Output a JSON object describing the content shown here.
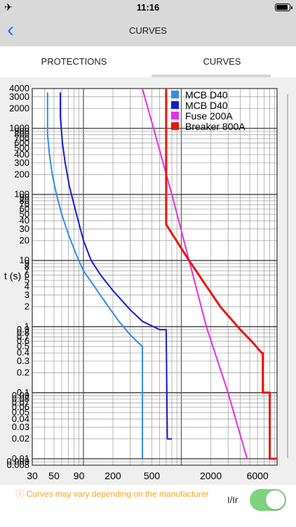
{
  "status_bar": {
    "time": "11:16"
  },
  "nav": {
    "title": "CURVES"
  },
  "tabs": [
    {
      "label": "PROTECTIONS"
    },
    {
      "label": "CURVES",
      "selected": true
    }
  ],
  "footer": {
    "note": "ⓘ Curves may vary depending on the manufacturer",
    "toggle_label": "I/Ir",
    "toggle_on": true
  },
  "colors": {
    "accent": "#1e7cf2",
    "note": "#f5a623",
    "toggle": "#7dd37f"
  },
  "chart_data": {
    "type": "line",
    "xscale": "log",
    "yscale": "log",
    "xlim": [
      30,
      9500
    ],
    "ylim": [
      0.008,
      4000
    ],
    "ylabel": "t (s)",
    "xlabel": "",
    "grid": true,
    "legend_position": "top-right",
    "x_ticks": [
      "30",
      "50",
      "90",
      "200",
      "500",
      "2000",
      "6000"
    ],
    "y_ticks": [
      "4000",
      "3000",
      "2000",
      "1000",
      "900",
      "800",
      "700",
      "600",
      "500",
      "400",
      "300",
      "200",
      "100",
      "90",
      "80",
      "70",
      "60",
      "50",
      "40",
      "30",
      "20",
      "10",
      "9",
      "8",
      "7",
      "6",
      "5",
      "4",
      "3",
      "2",
      "1",
      "0.9",
      "0.8",
      "0.7",
      "0.6",
      "0.5",
      "0.4",
      "0.3",
      "0.2",
      "0.1",
      "0.09",
      "0.08",
      "0.07",
      "0.06",
      "0.05",
      "0.04",
      "0.03",
      "0.02",
      "0.01",
      "0.009",
      "0.008"
    ],
    "series": [
      {
        "name": "MCB D40",
        "color": "#2f8ee8",
        "points": [
          [
            43,
            3500
          ],
          [
            43,
            800
          ],
          [
            45,
            400
          ],
          [
            48,
            200
          ],
          [
            53,
            100
          ],
          [
            60,
            50
          ],
          [
            70,
            25
          ],
          [
            85,
            12
          ],
          [
            100,
            7
          ],
          [
            130,
            4
          ],
          [
            180,
            2
          ],
          [
            230,
            1.2
          ],
          [
            300,
            0.75
          ],
          [
            400,
            0.5
          ],
          [
            400,
            0.01
          ]
        ]
      },
      {
        "name": "MCB D40",
        "color": "#1a1acd",
        "points": [
          [
            58,
            3500
          ],
          [
            58,
            1500
          ],
          [
            61,
            600
          ],
          [
            65,
            300
          ],
          [
            72,
            130
          ],
          [
            85,
            50
          ],
          [
            100,
            20
          ],
          [
            120,
            10
          ],
          [
            150,
            6
          ],
          [
            200,
            3.5
          ],
          [
            300,
            1.8
          ],
          [
            400,
            1.2
          ],
          [
            600,
            0.9
          ],
          [
            700,
            0.9
          ],
          [
            720,
            0.02
          ],
          [
            800,
            0.02
          ]
        ]
      },
      {
        "name": "Fuse 200A",
        "color": "#e62ee6",
        "points": [
          [
            400,
            4000
          ],
          [
            520,
            1000
          ],
          [
            800,
            100
          ],
          [
            1200,
            10
          ],
          [
            1800,
            1
          ],
          [
            3000,
            0.1
          ],
          [
            4700,
            0.01
          ]
        ]
      },
      {
        "name": "Breaker 800A",
        "color": "#e8160c",
        "points": [
          [
            700,
            4000
          ],
          [
            700,
            35
          ],
          [
            1200,
            10
          ],
          [
            2500,
            2
          ],
          [
            4000,
            0.9
          ],
          [
            5500,
            0.55
          ],
          [
            6600,
            0.4
          ],
          [
            6800,
            0.4
          ],
          [
            6800,
            0.1
          ],
          [
            8000,
            0.1
          ],
          [
            8000,
            0.01
          ],
          [
            9500,
            0.01
          ]
        ]
      }
    ]
  }
}
